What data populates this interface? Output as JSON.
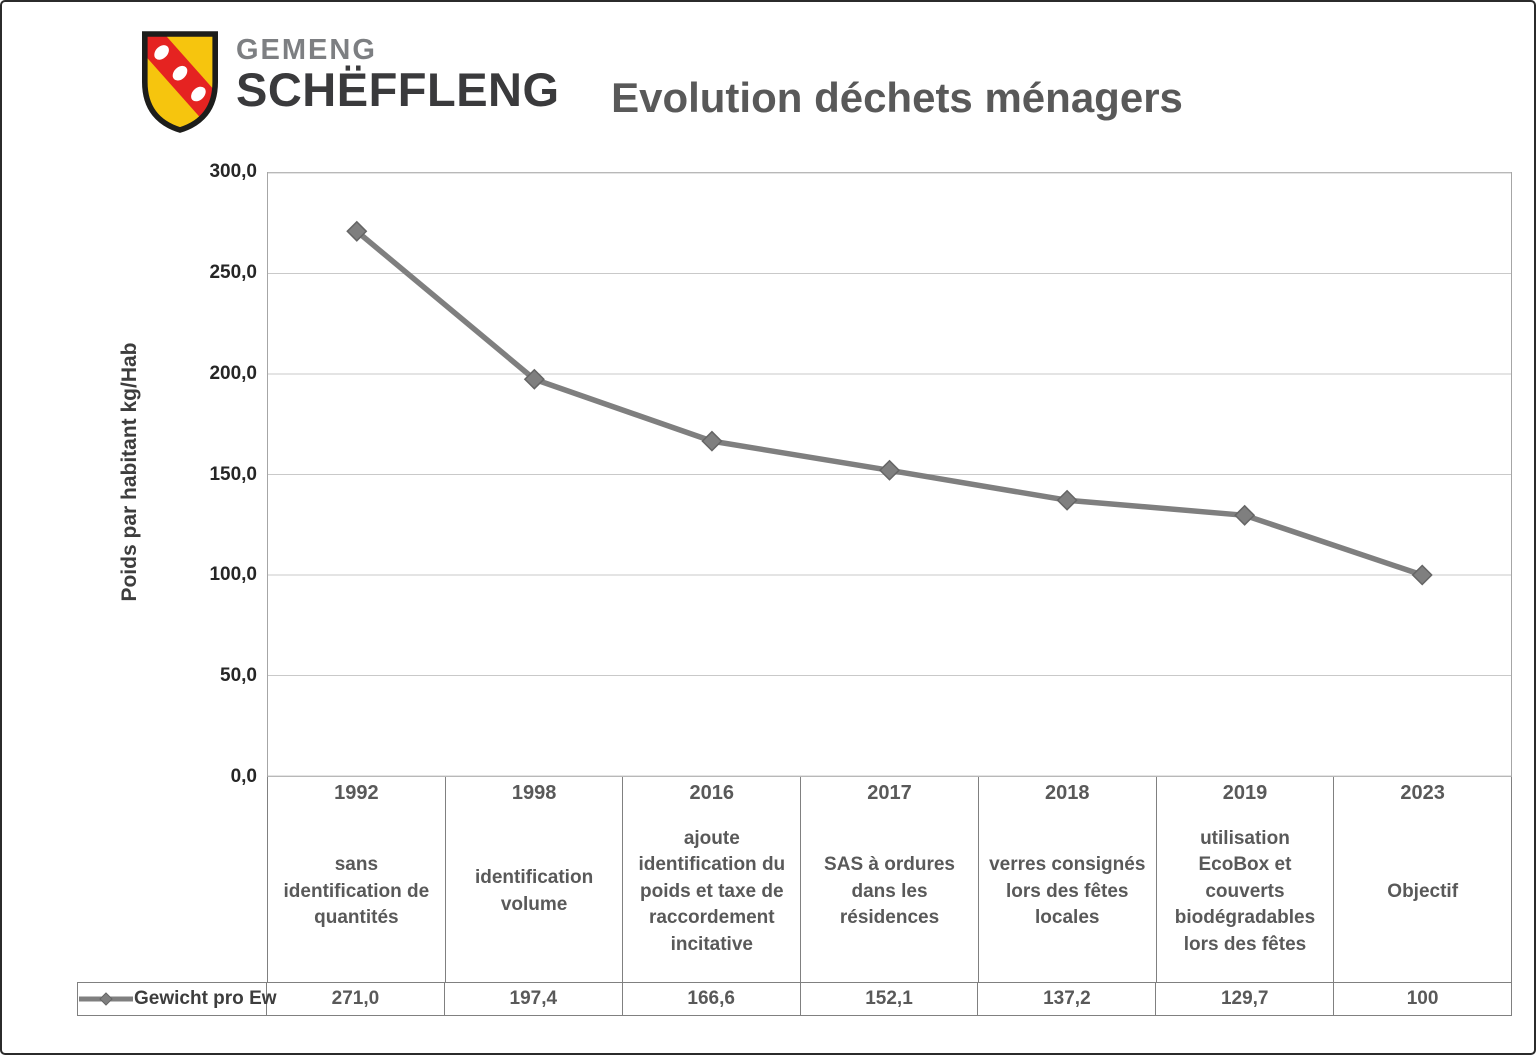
{
  "logo": {
    "line1": "GEMENG",
    "line2": "SCHËFFLENG"
  },
  "title": "Evolution déchets ménagers",
  "y_axis_title": "Poids par habitant kg/Hab",
  "colors": {
    "series_line": "#7f7f7f",
    "text_gray": "#595959",
    "gridline": "#c9c9c9",
    "shield_gold": "#f6c50e",
    "shield_bend_red": "#e52321"
  },
  "chart_data": {
    "type": "line",
    "title": "Evolution déchets ménagers",
    "ylabel": "Poids par habitant kg/Hab",
    "ylim": [
      0,
      300
    ],
    "ytick_step": 50,
    "ytick_labels": [
      "300,0",
      "250,0",
      "200,0",
      "150,0",
      "100,0",
      "50,0",
      "0,0"
    ],
    "grid": true,
    "legend_position": "bottom-left",
    "categories": [
      "1992",
      "1998",
      "2016",
      "2017",
      "2018",
      "2019",
      "2023"
    ],
    "category_notes": [
      "sans identification de quantités",
      "identification volume",
      "ajoute identification du poids et taxe de raccordement incitative",
      "SAS à ordures dans les résidences",
      "verres consignés lors des fêtes locales",
      "utilisation EcoBox et couverts biodégradables lors des fêtes",
      "Objectif"
    ],
    "series": [
      {
        "name": "Gewicht pro Ew",
        "values": [
          271.0,
          197.4,
          166.6,
          152.1,
          137.2,
          129.7,
          100
        ],
        "value_labels": [
          "271,0",
          "197,4",
          "166,6",
          "152,1",
          "137,2",
          "129,7",
          "100"
        ],
        "color": "#7f7f7f",
        "marker": "diamond"
      }
    ]
  }
}
